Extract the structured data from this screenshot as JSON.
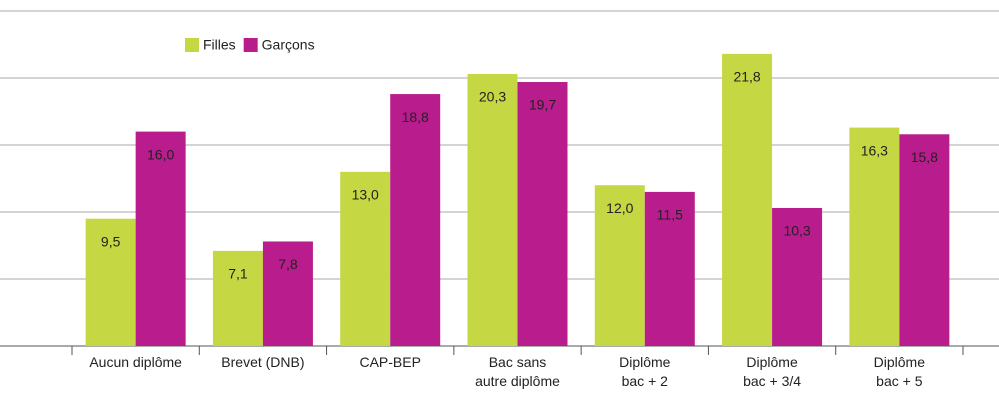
{
  "chart_data": {
    "type": "bar",
    "categories": [
      "Aucun diplôme",
      "Brevet (DNB)",
      "CAP-BEP",
      "Bac sans\nautre diplôme",
      "Diplôme\nbac + 2",
      "Diplôme\nbac + 3/4",
      "Diplôme\nbac + 5"
    ],
    "series": [
      {
        "name": "Filles",
        "color": "#c5d843",
        "values": [
          9.5,
          7.1,
          13.0,
          20.3,
          12.0,
          21.8,
          16.3
        ],
        "value_labels": [
          "9,5",
          "7,1",
          "13,0",
          "20,3",
          "12,0",
          "21,8",
          "16,3"
        ]
      },
      {
        "name": "Garçons",
        "color": "#b91c8c",
        "values": [
          16.0,
          7.8,
          18.8,
          19.7,
          11.5,
          10.3,
          15.8
        ],
        "value_labels": [
          "16,0",
          "7,8",
          "18,8",
          "19,7",
          "11,5",
          "10,3",
          "15,8"
        ]
      }
    ],
    "ylim": [
      0,
      25
    ],
    "yticks": [
      0,
      5,
      10,
      15,
      20,
      25
    ],
    "grid": true,
    "legend": "top-left"
  }
}
